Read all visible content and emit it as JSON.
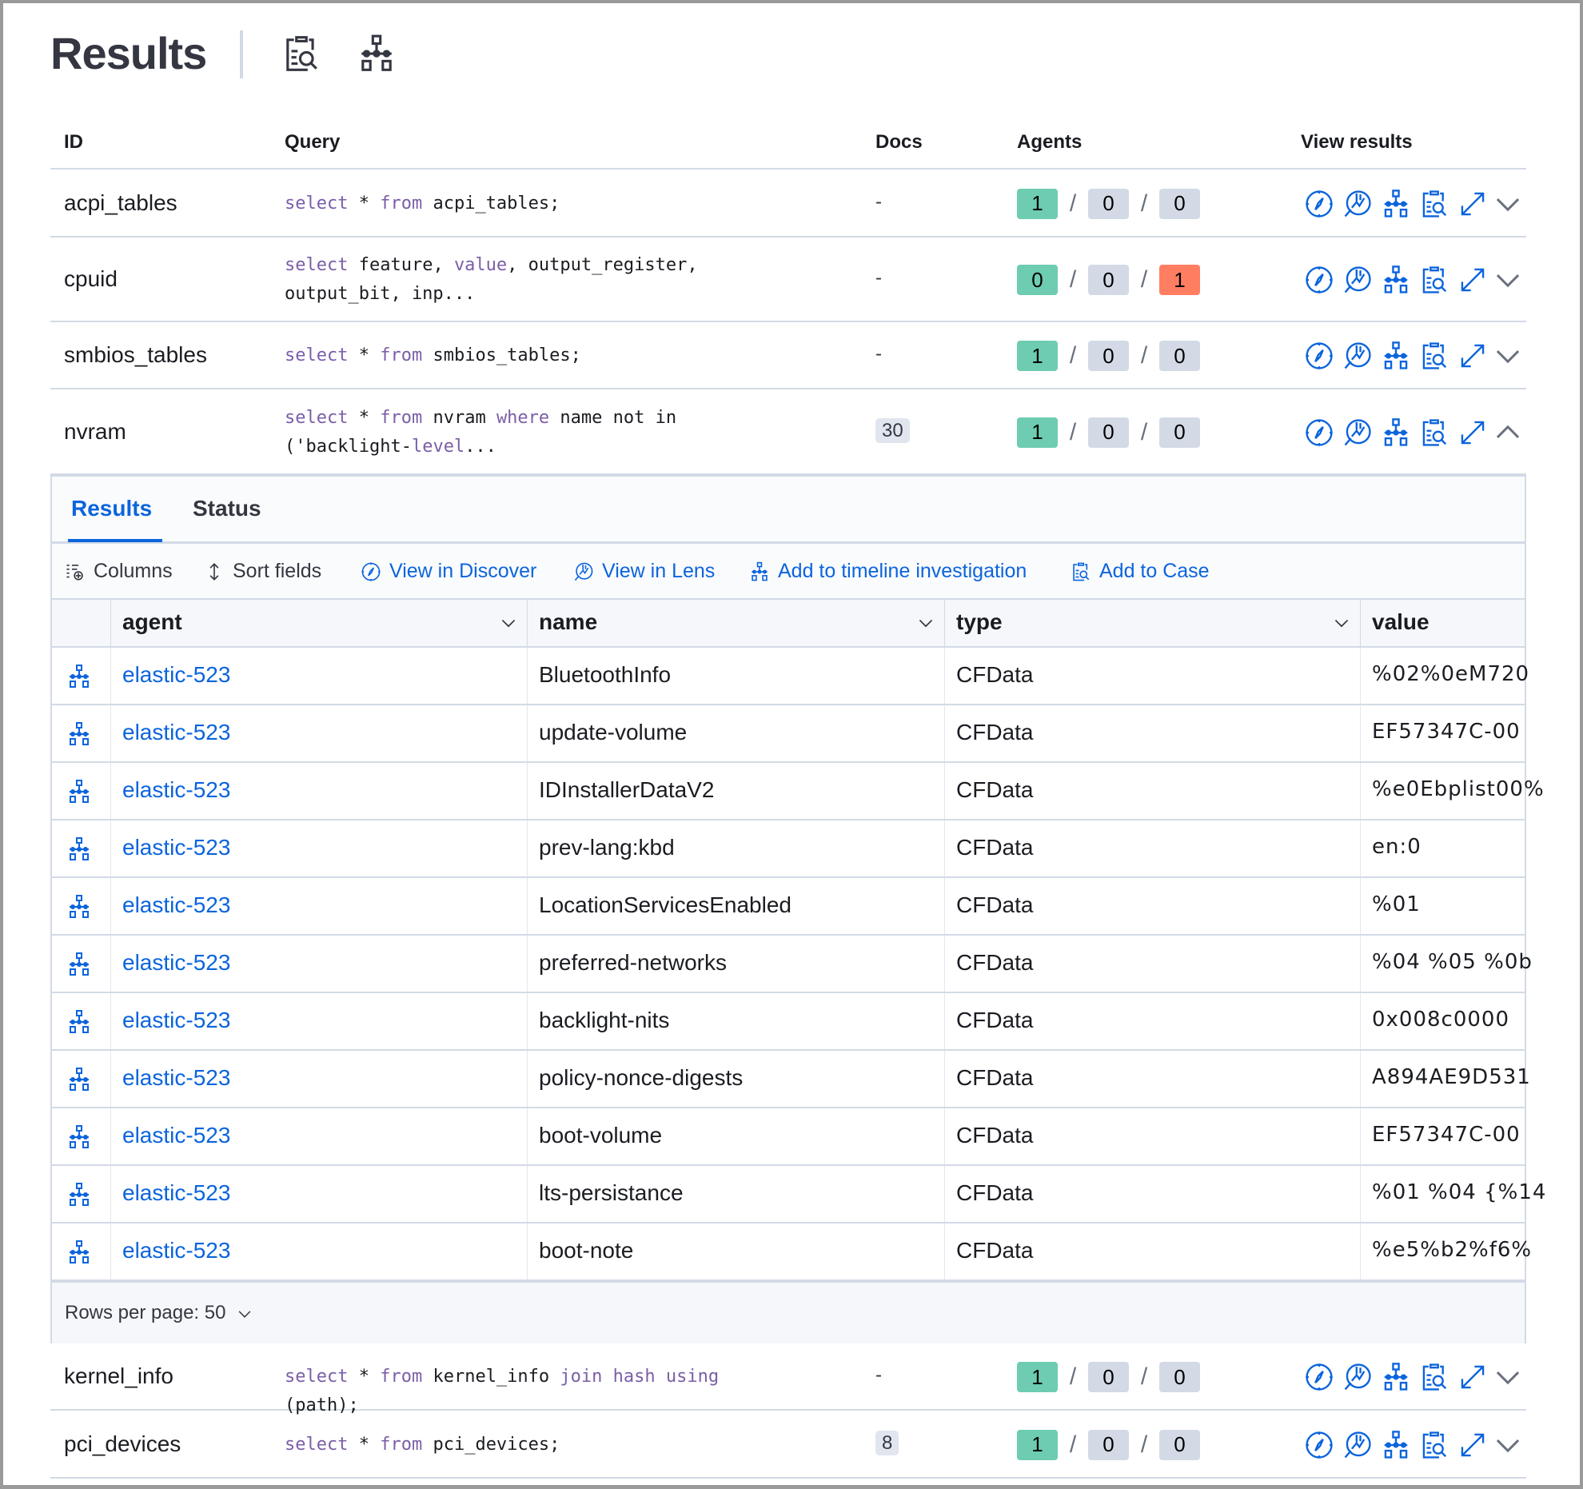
{
  "header": {
    "title": "Results",
    "icons": [
      "case-icon",
      "timeline-icon"
    ]
  },
  "table": {
    "columns": {
      "id": "ID",
      "query": "Query",
      "docs": "Docs",
      "agents": "Agents",
      "view_results": "View results"
    },
    "rows": [
      {
        "id": "acpi_tables",
        "query": [
          [
            "kw",
            "select"
          ],
          [
            "t",
            " * "
          ],
          [
            "kw",
            "from"
          ],
          [
            "t",
            " acpi_tables;"
          ]
        ],
        "docs": "-",
        "docs_badge": false,
        "agents": [
          "1",
          "0",
          "0"
        ],
        "agent_colors": [
          "#6dccb1",
          "#d3dae6",
          "#d3dae6"
        ],
        "expanded": false
      },
      {
        "id": "cpuid",
        "query": [
          [
            "kw",
            "select"
          ],
          [
            "t",
            " feature, "
          ],
          [
            "kw",
            "value"
          ],
          [
            "t",
            ", output_register, output_bit, inp..."
          ]
        ],
        "docs": "-",
        "docs_badge": false,
        "agents": [
          "0",
          "0",
          "1"
        ],
        "agent_colors": [
          "#6dccb1",
          "#d3dae6",
          "#ff7e62"
        ],
        "expanded": false
      },
      {
        "id": "smbios_tables",
        "query": [
          [
            "kw",
            "select"
          ],
          [
            "t",
            " * "
          ],
          [
            "kw",
            "from"
          ],
          [
            "t",
            " smbios_tables;"
          ]
        ],
        "docs": "-",
        "docs_badge": false,
        "agents": [
          "1",
          "0",
          "0"
        ],
        "agent_colors": [
          "#6dccb1",
          "#d3dae6",
          "#d3dae6"
        ],
        "expanded": false
      },
      {
        "id": "nvram",
        "query": [
          [
            "kw",
            "select"
          ],
          [
            "t",
            " * "
          ],
          [
            "kw",
            "from"
          ],
          [
            "t",
            " nvram "
          ],
          [
            "kw",
            "where"
          ],
          [
            "t",
            " name not in ('backlight-"
          ],
          [
            "kw",
            "level"
          ],
          [
            "t",
            "..."
          ]
        ],
        "docs": "30",
        "docs_badge": true,
        "agents": [
          "1",
          "0",
          "0"
        ],
        "agent_colors": [
          "#6dccb1",
          "#d3dae6",
          "#d3dae6"
        ],
        "expanded": true
      },
      {
        "id": "kernel_info",
        "query": [
          [
            "kw",
            "select"
          ],
          [
            "t",
            " * "
          ],
          [
            "kw",
            "from"
          ],
          [
            "t",
            " kernel_info "
          ],
          [
            "kw",
            "join hash using"
          ],
          [
            "t",
            " (path);"
          ]
        ],
        "docs": "-",
        "docs_badge": false,
        "agents": [
          "1",
          "0",
          "0"
        ],
        "agent_colors": [
          "#6dccb1",
          "#d3dae6",
          "#d3dae6"
        ],
        "expanded": false
      },
      {
        "id": "pci_devices",
        "query": [
          [
            "kw",
            "select"
          ],
          [
            "t",
            " * "
          ],
          [
            "kw",
            "from"
          ],
          [
            "t",
            " pci_devices;"
          ]
        ],
        "docs": "8",
        "docs_badge": true,
        "agents": [
          "1",
          "0",
          "0"
        ],
        "agent_colors": [
          "#6dccb1",
          "#d3dae6",
          "#d3dae6"
        ],
        "expanded": false
      }
    ],
    "view_icons": [
      "discover-icon",
      "lens-icon",
      "timeline-icon",
      "case-icon",
      "fullscreen-icon"
    ]
  },
  "panel": {
    "tabs": [
      {
        "label": "Results",
        "active": true
      },
      {
        "label": "Status",
        "active": false
      }
    ],
    "toolbar": {
      "columns": "Columns",
      "sort_fields": "Sort fields",
      "view_discover": "View in Discover",
      "view_lens": "View in Lens",
      "add_timeline": "Add to timeline investigation",
      "add_case": "Add to Case"
    },
    "grid": {
      "columns": [
        "agent",
        "name",
        "type",
        "value"
      ],
      "rows": [
        [
          "elastic-523",
          "BluetoothInfo",
          "CFData",
          "%02%0eM720"
        ],
        [
          "elastic-523",
          "update-volume",
          "CFData",
          "EF57347C-00"
        ],
        [
          "elastic-523",
          "IDInstallerDataV2",
          "CFData",
          "%e0Ebplist00%"
        ],
        [
          "elastic-523",
          "prev-lang:kbd",
          "CFData",
          "en:0"
        ],
        [
          "elastic-523",
          "LocationServicesEnabled",
          "CFData",
          "%01"
        ],
        [
          "elastic-523",
          "preferred-networks",
          "CFData",
          "%04 %05 %0b"
        ],
        [
          "elastic-523",
          "backlight-nits",
          "CFData",
          "0x008c0000"
        ],
        [
          "elastic-523",
          "policy-nonce-digests",
          "CFData",
          "A894AE9D531"
        ],
        [
          "elastic-523",
          "boot-volume",
          "CFData",
          "EF57347C-00"
        ],
        [
          "elastic-523",
          "lts-persistance",
          "CFData",
          "%01 %04 {%14"
        ],
        [
          "elastic-523",
          "boot-note",
          "CFData",
          "%e5%b2%f6%"
        ]
      ]
    },
    "footer": {
      "rows_per_page": "Rows per page: 50"
    }
  },
  "colors": {
    "link": "#0b64dd",
    "keyword": "#7b5ea7",
    "success": "#6dccb1",
    "danger": "#ff7e62",
    "neutral": "#d3dae6"
  }
}
